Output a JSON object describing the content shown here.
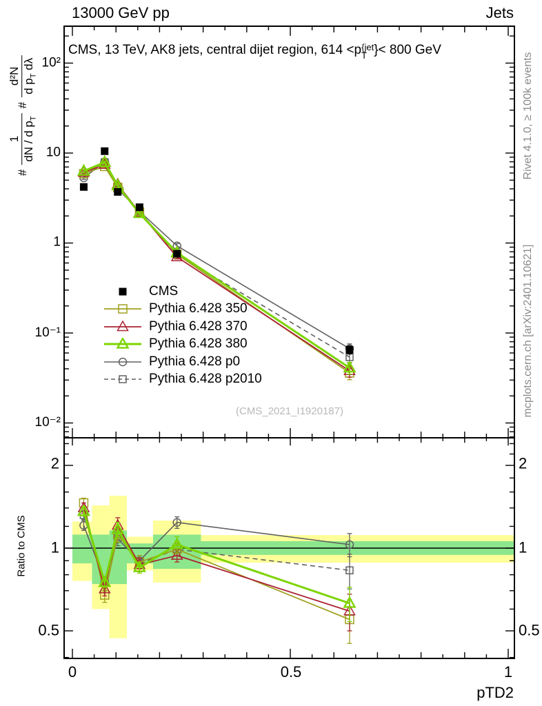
{
  "header": {
    "left": "13000 GeV pp",
    "right": "Jets"
  },
  "title": {
    "pre": "CMS, 13 TeV, AK8 jets, central dijet region, 614 <p",
    "sup": "{jet",
    "sub": "T",
    "post": "}< 800 GeV"
  },
  "side_notes": {
    "top": "Rivet 4.1.0, ≥ 100k events",
    "bottom": "mcplots.cern.ch [arXiv:2401.10621]"
  },
  "watermark": "(CMS_2021_I1920187)",
  "axes": {
    "xlabel": "pTD2",
    "ratio_ylabel": "Ratio to CMS",
    "main_y_ticklabels": [
      "10²",
      "10",
      "1",
      "10⁻¹",
      "10⁻²"
    ],
    "ratio_y_ticklabels": [
      "2",
      "1",
      "0.5"
    ],
    "x_ticklabels": [
      "0",
      "0.5",
      "1"
    ],
    "ylabel_formula": {
      "hash1": "#",
      "num1": "1",
      "den1_pre": "dN / d p",
      "den1_sub": "T",
      "hash2": "#",
      "num2": "d²N",
      "den2_pre": "d p",
      "den2_sub": "T",
      "den2_post": " dλ"
    }
  },
  "chart_data": {
    "type": "line",
    "title": "CMS, 13 TeV, AK8 jets, central dijet region, 614 <pT{jet}< 800 GeV",
    "xlabel": "pTD2",
    "ylabel": "# 1/(dN/dp_T) # d²N/(dp_T dλ)",
    "ratio_ylabel": "Ratio to CMS",
    "x_range": [
      -0.0206,
      1.0142
    ],
    "main_y_range": [
      0.0069,
      257
    ],
    "ratio_y_range": [
      0.397,
      2.52
    ],
    "main_y_scale": "log",
    "ratio_y_scale": "log",
    "legend_position": "inside-left-middle",
    "x": [
      0.026,
      0.074,
      0.104,
      0.154,
      0.24,
      0.636
    ],
    "series": [
      {
        "name": "CMS",
        "color": "#000000",
        "marker": "square-filled",
        "msize": 11,
        "line": "none",
        "lwidth": 0,
        "in_ratio": false,
        "values": [
          4.2,
          10.5,
          3.7,
          2.5,
          0.76,
          0.065
        ],
        "err_rel": [
          0.03,
          0.025,
          0.04,
          0.035,
          0.05,
          0.1
        ]
      },
      {
        "name": "Pythia 6.428 350",
        "color": "#a0a020",
        "marker": "square-open",
        "msize": 12,
        "line": "solid",
        "lwidth": 1.8,
        "in_ratio": true,
        "values": [
          5.9,
          7.1,
          4.15,
          2.22,
          0.75,
          0.036
        ],
        "err_rel": [
          0.04,
          0.03,
          0.05,
          0.04,
          0.05,
          0.16
        ],
        "ratio": [
          1.46,
          0.675,
          1.12,
          0.89,
          0.99,
          0.55
        ],
        "ratio_err": [
          0.06,
          0.04,
          0.07,
          0.05,
          0.05,
          0.1
        ]
      },
      {
        "name": "Pythia 6.428 370",
        "color": "#aa2233",
        "marker": "triangle-open",
        "msize": 13,
        "line": "solid",
        "lwidth": 1.8,
        "in_ratio": true,
        "values": [
          6.1,
          7.45,
          4.5,
          2.18,
          0.7,
          0.038
        ],
        "err_rel": [
          0.04,
          0.03,
          0.05,
          0.04,
          0.05,
          0.15
        ],
        "ratio": [
          1.4,
          0.71,
          1.21,
          0.87,
          0.94,
          0.59
        ],
        "ratio_err": [
          0.06,
          0.04,
          0.08,
          0.05,
          0.05,
          0.09
        ]
      },
      {
        "name": "Pythia 6.428 380",
        "color": "#7cd400",
        "marker": "triangle-open",
        "msize": 13,
        "line": "solid",
        "lwidth": 3,
        "in_ratio": true,
        "values": [
          6.3,
          7.9,
          4.35,
          2.13,
          0.78,
          0.041
        ],
        "err_rel": [
          0.04,
          0.03,
          0.05,
          0.04,
          0.06,
          0.15
        ],
        "ratio": [
          1.36,
          0.75,
          1.17,
          0.85,
          1.03,
          0.63
        ],
        "ratio_err": [
          0.05,
          0.03,
          0.07,
          0.04,
          0.07,
          0.09
        ]
      },
      {
        "name": "Pythia 6.428 p0",
        "color": "#606060",
        "marker": "circle-open",
        "msize": 11,
        "line": "solid",
        "lwidth": 1.6,
        "in_ratio": true,
        "values": [
          5.3,
          8.0,
          4.0,
          2.25,
          0.93,
          0.067
        ],
        "err_rel": [
          0.04,
          0.03,
          0.05,
          0.04,
          0.06,
          0.13
        ],
        "ratio": [
          1.21,
          0.76,
          1.08,
          0.9,
          1.24,
          1.03
        ],
        "ratio_err": [
          0.05,
          0.03,
          0.06,
          0.04,
          0.06,
          0.1
        ]
      },
      {
        "name": "Pythia 6.428 p2010",
        "color": "#606060",
        "marker": "square-open",
        "msize": 10,
        "line": "dashed",
        "lwidth": 1.6,
        "in_ratio": true,
        "values": [
          5.8,
          7.9,
          4.2,
          2.2,
          0.74,
          0.054
        ],
        "err_rel": [
          0.04,
          0.03,
          0.05,
          0.04,
          0.05,
          0.14
        ],
        "ratio": [
          1.32,
          0.755,
          1.13,
          0.88,
          0.99,
          0.83
        ],
        "ratio_err": [
          0.05,
          0.03,
          0.06,
          0.04,
          0.05,
          0.12
        ]
      }
    ],
    "ratio_reference": 1.0,
    "band_colors": {
      "yellow": "#ffff99",
      "green": "#8ce68c"
    },
    "ratio_bands": [
      {
        "x": [
          0.0,
          0.045
        ],
        "yellow": [
          0.76,
          1.25
        ],
        "green": [
          0.88,
          1.12
        ]
      },
      {
        "x": [
          0.045,
          0.085
        ],
        "yellow": [
          0.6,
          1.43
        ],
        "green": [
          0.74,
          1.12
        ]
      },
      {
        "x": [
          0.085,
          0.125
        ],
        "yellow": [
          0.47,
          1.55
        ],
        "green": [
          0.74,
          1.16
        ]
      },
      {
        "x": [
          0.125,
          0.185
        ],
        "yellow": [
          0.83,
          1.1
        ],
        "green": [
          0.88,
          1.04
        ]
      },
      {
        "x": [
          0.185,
          0.295
        ],
        "yellow": [
          0.75,
          1.26
        ],
        "green": [
          0.84,
          1.12
        ]
      },
      {
        "x": [
          0.295,
          1.0142
        ],
        "yellow": [
          0.885,
          1.115
        ],
        "green": [
          0.945,
          1.06
        ]
      }
    ]
  }
}
